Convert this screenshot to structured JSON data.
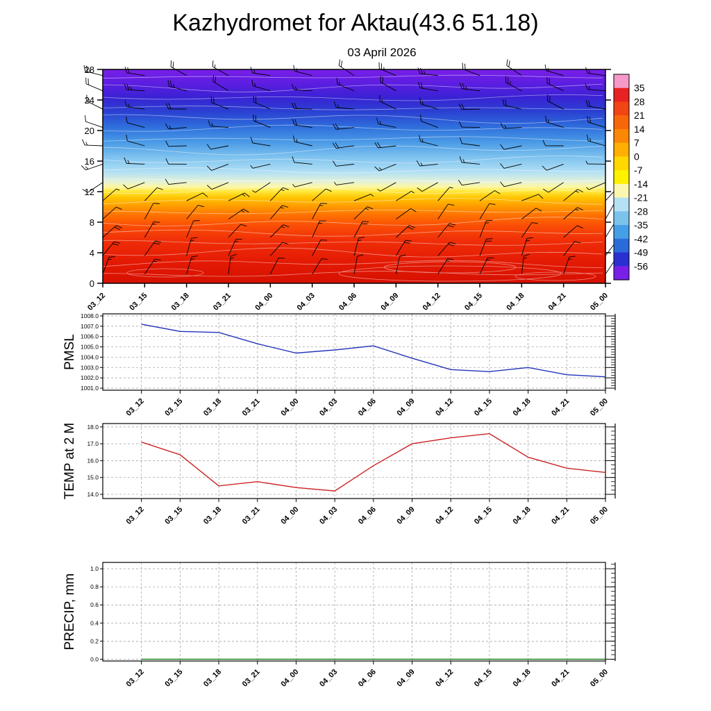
{
  "title": "Kazhydromet for Aktau(43.6 51.18)",
  "subtitle": "03 April 2026",
  "time_labels": [
    "03_12",
    "03_15",
    "03_18",
    "03_21",
    "04_00",
    "04_03",
    "04_06",
    "04_09",
    "04_12",
    "04_15",
    "04_18",
    "04_21",
    "05_00"
  ],
  "colors": {
    "grid": "#999999",
    "axis": "#000000",
    "barbs": "#000000",
    "contours": "#ffffff"
  },
  "chart_data": [
    {
      "type": "heatmap",
      "name": "upper-air",
      "description": "Time-height cross section: temperature shading (colorbar, deg C) with wind barbs",
      "x_categories": [
        "03_12",
        "03_15",
        "03_18",
        "03_21",
        "04_00",
        "04_03",
        "04_06",
        "04_09",
        "04_12",
        "04_15",
        "04_18",
        "04_21",
        "05_00"
      ],
      "ylim": [
        0,
        28
      ],
      "yticks": [
        0,
        4,
        8,
        12,
        16,
        20,
        24,
        28
      ],
      "colorbar_ticks": [
        35,
        28,
        21,
        14,
        7,
        0,
        -7,
        -14,
        -21,
        -28,
        -35,
        -42,
        -49,
        -56
      ],
      "colorbar_colors": [
        "#f59ac8",
        "#e82222",
        "#f24414",
        "#f8660c",
        "#fb8804",
        "#ffb000",
        "#ffd800",
        "#fff200",
        "#fbf7b0",
        "#b5e1f3",
        "#7cc3ec",
        "#459fe6",
        "#2b6bd9",
        "#2a2fd0",
        "#7a1fe8"
      ],
      "fill_gradient": [
        {
          "at": 0.0,
          "color": "#7a1fe8"
        },
        {
          "at": 0.07,
          "color": "#5a1ee0"
        },
        {
          "at": 0.13,
          "color": "#3a22d4"
        },
        {
          "at": 0.2,
          "color": "#2a42d2"
        },
        {
          "at": 0.27,
          "color": "#2f6fdc"
        },
        {
          "at": 0.34,
          "color": "#4a9ae6"
        },
        {
          "at": 0.41,
          "color": "#7ec2ef"
        },
        {
          "at": 0.48,
          "color": "#b2e0f4"
        },
        {
          "at": 0.525,
          "color": "#e4f2d8"
        },
        {
          "at": 0.55,
          "color": "#fdf7a0"
        },
        {
          "at": 0.57,
          "color": "#ffe83c"
        },
        {
          "at": 0.6,
          "color": "#ffc400"
        },
        {
          "at": 0.64,
          "color": "#ff9c00"
        },
        {
          "at": 0.68,
          "color": "#ff7300"
        },
        {
          "at": 0.73,
          "color": "#fa4e06"
        },
        {
          "at": 0.8,
          "color": "#f02e08"
        },
        {
          "at": 0.9,
          "color": "#e41a04"
        },
        {
          "at": 1.0,
          "color": "#d61000"
        }
      ],
      "wind_levels": [
        {
          "km": 1.2,
          "dir": 20,
          "spd": 15
        },
        {
          "km": 3.6,
          "dir": 28,
          "spd": 18
        },
        {
          "km": 6.0,
          "dir": 35,
          "spd": 18
        },
        {
          "km": 8.4,
          "dir": 42,
          "spd": 15
        },
        {
          "km": 10.8,
          "dir": 55,
          "spd": 12
        },
        {
          "km": 13.2,
          "dir": 250,
          "spd": 10
        },
        {
          "km": 15.6,
          "dir": 262,
          "spd": 14
        },
        {
          "km": 18.0,
          "dir": 272,
          "spd": 16
        },
        {
          "km": 20.4,
          "dir": 278,
          "spd": 18
        },
        {
          "km": 22.8,
          "dir": 283,
          "spd": 20
        },
        {
          "km": 25.2,
          "dir": 287,
          "spd": 22
        },
        {
          "km": 27.2,
          "dir": 290,
          "spd": 22
        }
      ]
    },
    {
      "type": "line",
      "name": "pmsl",
      "ylabel": "PMSL",
      "x_categories": [
        "03_12",
        "03_15",
        "03_18",
        "03_21",
        "04_00",
        "04_03",
        "04_06",
        "04_09",
        "04_12",
        "04_15",
        "04_18",
        "04_21",
        "05_00"
      ],
      "yticks": [
        1001,
        1002,
        1003,
        1004,
        1005,
        1006,
        1007,
        1008
      ],
      "ytick_labels": [
        "1001.0",
        "1002.0",
        "1003.0",
        "1004.0",
        "1005.0",
        "1006.0",
        "1007.0",
        "1008.0"
      ],
      "ylim": [
        1000.8,
        1008.2
      ],
      "values": [
        1007.2,
        1006.5,
        1006.4,
        1005.3,
        1004.4,
        1004.7,
        1005.1,
        1003.9,
        1002.8,
        1002.6,
        1003.0,
        1002.3,
        1002.1
      ],
      "line_color": "#2233bb"
    },
    {
      "type": "line",
      "name": "temp-2m",
      "ylabel": "TEMP at 2 M",
      "x_categories": [
        "03_12",
        "03_15",
        "03_18",
        "03_21",
        "04_00",
        "04_03",
        "04_06",
        "04_09",
        "04_12",
        "04_15",
        "04_18",
        "04_21",
        "05_00"
      ],
      "yticks": [
        14,
        15,
        16,
        17,
        18
      ],
      "ytick_labels": [
        "14.0",
        "15.0",
        "16.0",
        "17.0",
        "18.0"
      ],
      "ylim": [
        13.75,
        18.2
      ],
      "values": [
        17.1,
        16.35,
        14.5,
        14.75,
        14.4,
        14.2,
        15.7,
        17.0,
        17.35,
        17.6,
        16.2,
        15.55,
        15.3
      ],
      "line_color": "#cc2222"
    },
    {
      "type": "line",
      "name": "precip",
      "ylabel": "PRECIP, mm",
      "x_categories": [
        "03_12",
        "03_15",
        "03_18",
        "03_21",
        "04_00",
        "04_03",
        "04_06",
        "04_09",
        "04_12",
        "04_15",
        "04_18",
        "04_21",
        "05_00"
      ],
      "yticks": [
        0,
        0.2,
        0.4,
        0.6,
        0.8,
        1.0
      ],
      "ytick_labels": [
        "0.0",
        "0.2",
        "0.4",
        "0.6",
        "0.8",
        "1.0"
      ],
      "ylim": [
        -0.02,
        1.07
      ],
      "values": [
        0,
        0,
        0,
        0,
        0,
        0,
        0,
        0,
        0,
        0,
        0,
        0,
        0
      ],
      "line_color": "#117711"
    }
  ]
}
